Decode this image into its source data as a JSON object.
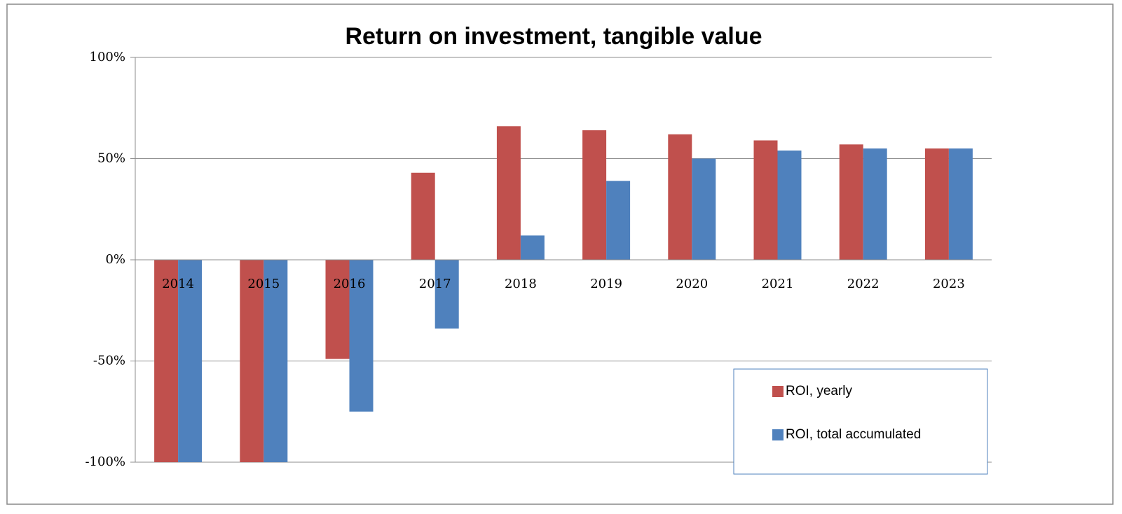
{
  "chart_data": {
    "type": "bar",
    "title": "Return on investment, tangible value",
    "categories": [
      "2014",
      "2015",
      "2016",
      "2017",
      "2018",
      "2019",
      "2020",
      "2021",
      "2022",
      "2023"
    ],
    "series": [
      {
        "name": "ROI, yearly",
        "color": "#c0504d",
        "values": [
          -100,
          -100,
          -49,
          43,
          66,
          64,
          62,
          59,
          57,
          55
        ]
      },
      {
        "name": "ROI, total accumulated",
        "color": "#4f81bd",
        "values": [
          -100,
          -100,
          -75,
          -34,
          12,
          39,
          50,
          54,
          55,
          55
        ]
      }
    ],
    "ylim": [
      -100,
      100
    ],
    "yticks": [
      {
        "value": -100,
        "label": "-100%"
      },
      {
        "value": -50,
        "label": "-50%"
      },
      {
        "value": 0,
        "label": "0%"
      },
      {
        "value": 50,
        "label": "50%"
      },
      {
        "value": 100,
        "label": "100%"
      }
    ],
    "grid": true,
    "legend": "lower right"
  }
}
